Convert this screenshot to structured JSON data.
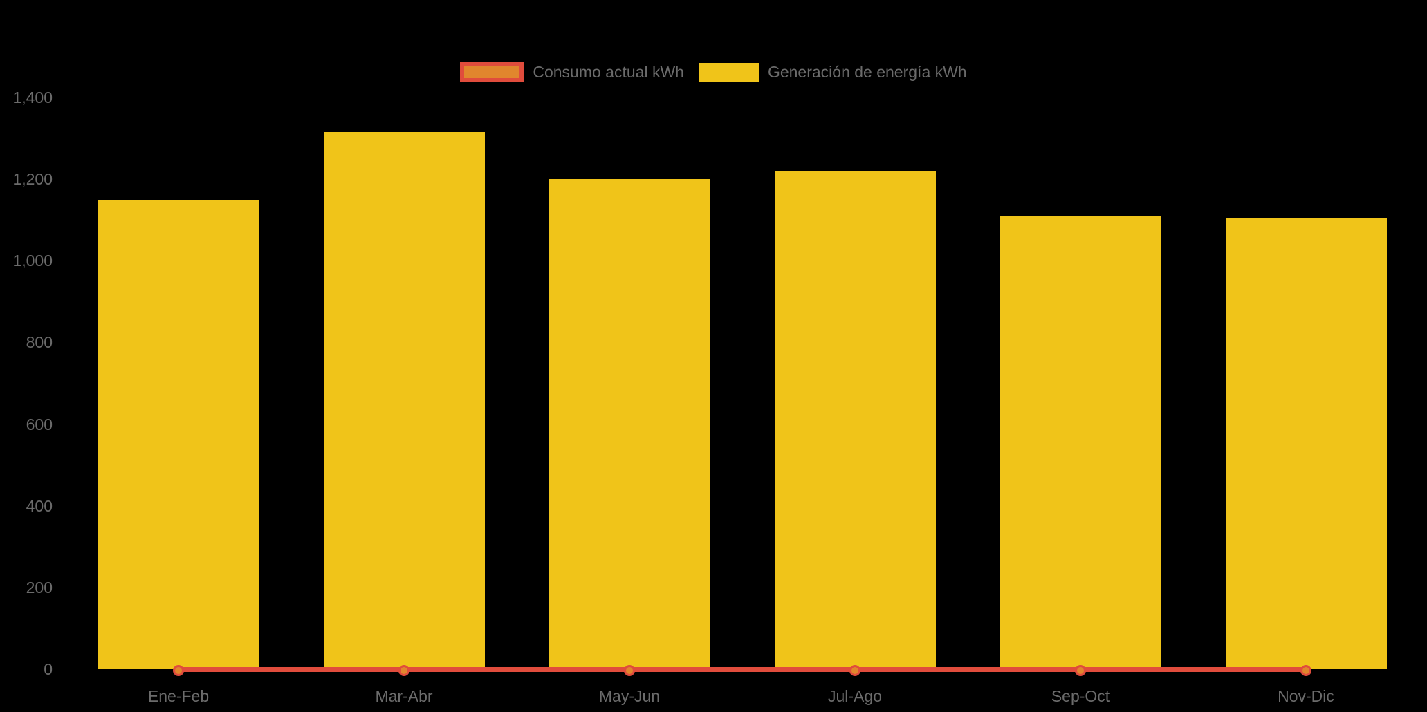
{
  "background_color": "#000000",
  "text_color": "#6B6B6B",
  "legend": {
    "position": "top-center",
    "items": [
      {
        "label": "Consumo actual kWh",
        "series_type": "line",
        "swatch_fill": "#E1862D",
        "swatch_border": "#E04C3C"
      },
      {
        "label": "Generación de energía kWh",
        "series_type": "bar",
        "swatch_fill": "#F0C419",
        "swatch_border": ""
      }
    ]
  },
  "chart_data": {
    "type": "bar",
    "subtype": "bar-with-line-overlay",
    "title": "",
    "xlabel": "",
    "ylabel": "",
    "categories": [
      "Ene-Feb",
      "Mar-Abr",
      "May-Jun",
      "Jul-Ago",
      "Sep-Oct",
      "Nov-Dic"
    ],
    "series": [
      {
        "name": "Consumo actual kWh",
        "type": "line",
        "color": "#E04C3C",
        "marker_fill": "#E1862D",
        "marker_border": "#E04C3C",
        "values": [
          0,
          0,
          0,
          0,
          0,
          0
        ]
      },
      {
        "name": "Generación de energía kWh",
        "type": "bar",
        "color": "#F0C419",
        "values": [
          1150,
          1315,
          1200,
          1220,
          1110,
          1105
        ]
      }
    ],
    "ylim": [
      0,
      1400
    ],
    "yticks": [
      0,
      200,
      400,
      600,
      800,
      1000,
      1200,
      1400
    ],
    "ytick_labels": [
      "0",
      "200",
      "400",
      "600",
      "800",
      "1,000",
      "1,200",
      "1,400"
    ],
    "grid": false,
    "axis_lines": false,
    "legend_position": "top-center"
  }
}
